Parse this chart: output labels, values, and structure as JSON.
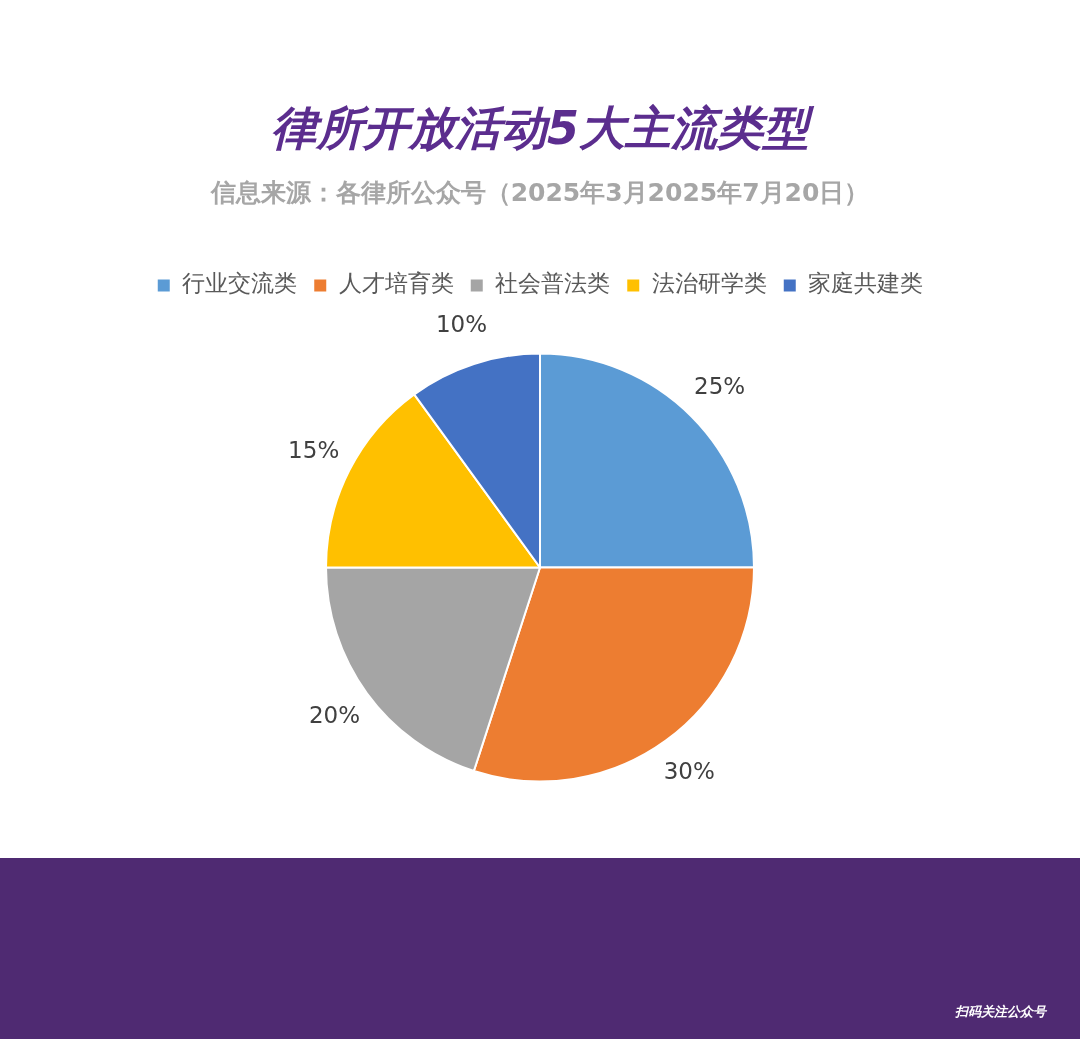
{
  "chart_data": {
    "type": "pie",
    "title": "律所开放活动5大主流类型",
    "subtitle": "信息来源：各律所公众号（2025年3月2025年7月20日）",
    "categories": [
      "行业交流类",
      "人才培育类",
      "社会普法类",
      "法治研学类",
      "家庭共建类"
    ],
    "values": [
      25,
      30,
      20,
      15,
      10
    ],
    "colors": [
      "#5b9bd5",
      "#ed7d31",
      "#a5a5a5",
      "#ffc000",
      "#4472c4"
    ],
    "value_labels": [
      "25%",
      "30%",
      "20%",
      "15%",
      "10%"
    ],
    "legend": "top",
    "annotations": [
      "扫码关注公众号"
    ]
  }
}
